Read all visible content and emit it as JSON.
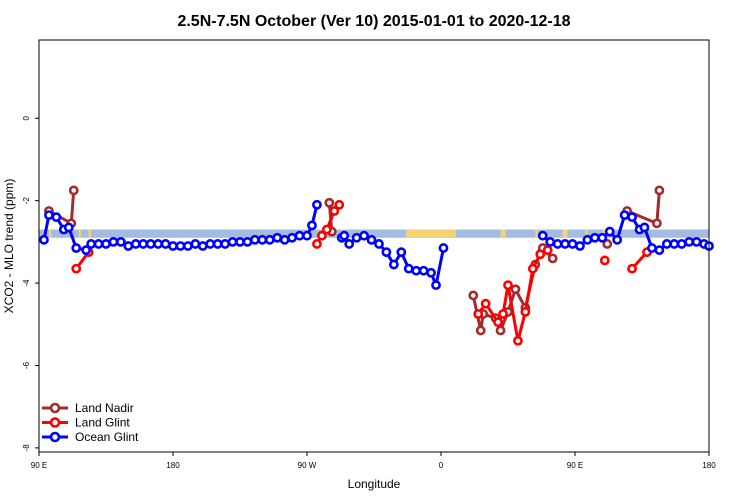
{
  "chart_data": {
    "type": "line",
    "title": "2.5N-7.5N October (Ver 10)   2015-01-01 to 2020-12-18",
    "xlabel": "Longitude",
    "ylabel": "XCO2 - MLO trend (ppm)",
    "xlim": [
      -90,
      180
    ],
    "ylim": [
      -8.1,
      1.9
    ],
    "x_ticks": [
      {
        "value": -90,
        "label": "90 E"
      },
      {
        "value": -36,
        "label": "180"
      },
      {
        "value": 18,
        "label": "90 W"
      },
      {
        "value": 72,
        "label": "0"
      },
      {
        "value": 126,
        "label": "90 E"
      },
      {
        "value": 180,
        "label": "180"
      }
    ],
    "y_ticks": [
      0,
      -2,
      -4,
      -6,
      -8
    ],
    "grid": false,
    "legend_position": "bottom-left",
    "band": {
      "y_range": [
        -2.9,
        -2.7
      ],
      "base_color": "#a3bcdf",
      "highlight_color": "#f5d273",
      "highlight_x_ranges": [
        [
          -86,
          -85
        ],
        [
          -74,
          -73
        ],
        [
          -70,
          -69
        ],
        [
          58,
          78
        ],
        [
          96,
          98
        ],
        [
          110,
          111
        ],
        [
          121,
          123
        ],
        [
          130,
          131
        ],
        [
          137,
          138
        ]
      ]
    },
    "series": [
      {
        "name": "Land Nadir",
        "color": "#a52a2a",
        "segments": [
          [
            [
              -86,
              -2.25
            ],
            [
              -77,
              -2.55
            ],
            [
              -76,
              -1.75
            ]
          ],
          [
            [
              27,
              -2.05
            ],
            [
              28,
              -2.75
            ]
          ],
          [
            [
              85,
              -4.3
            ],
            [
              88,
              -5.15
            ],
            [
              89,
              -4.75
            ],
            [
              94,
              -4.85
            ],
            [
              96,
              -5.15
            ],
            [
              99,
              -4.7
            ],
            [
              102,
              -4.15
            ],
            [
              106,
              -4.6
            ],
            [
              110,
              -3.55
            ],
            [
              113,
              -3.15
            ],
            [
              117,
              -3.4
            ]
          ],
          [
            [
              139,
              -3.05
            ]
          ],
          [
            [
              147,
              -2.25
            ],
            [
              159,
              -2.55
            ],
            [
              160,
              -1.75
            ]
          ]
        ]
      },
      {
        "name": "Land Glint",
        "color": "#ff0000",
        "segments": [
          [
            [
              -75,
              -3.65
            ],
            [
              -70,
              -3.25
            ]
          ],
          [
            [
              22,
              -3.05
            ],
            [
              24,
              -2.85
            ],
            [
              26,
              -2.7
            ],
            [
              29,
              -2.25
            ],
            [
              31,
              -2.1
            ]
          ],
          [
            [
              87,
              -4.75
            ],
            [
              90,
              -4.5
            ],
            [
              95,
              -4.95
            ],
            [
              97,
              -4.75
            ],
            [
              99,
              -4.05
            ],
            [
              103,
              -5.4
            ],
            [
              106,
              -4.7
            ],
            [
              109,
              -3.65
            ],
            [
              112,
              -3.3
            ],
            [
              115,
              -3.2
            ]
          ],
          [
            [
              138,
              -3.45
            ]
          ],
          [
            [
              149,
              -3.65
            ],
            [
              155,
              -3.25
            ]
          ]
        ]
      },
      {
        "name": "Ocean Glint",
        "color": "#0000ff",
        "segments": [
          [
            [
              -88,
              -2.95
            ],
            [
              -86,
              -2.35
            ],
            [
              -83,
              -2.4
            ],
            [
              -80,
              -2.7
            ],
            [
              -78,
              -2.65
            ],
            [
              -75,
              -3.15
            ],
            [
              -71,
              -3.2
            ],
            [
              -69,
              -3.05
            ],
            [
              -66,
              -3.05
            ],
            [
              -63,
              -3.05
            ],
            [
              -60,
              -3
            ],
            [
              -57,
              -3
            ],
            [
              -54,
              -3.1
            ],
            [
              -51,
              -3.05
            ],
            [
              -48,
              -3.05
            ],
            [
              -45,
              -3.05
            ],
            [
              -42,
              -3.05
            ],
            [
              -39,
              -3.05
            ],
            [
              -36,
              -3.1
            ],
            [
              -33,
              -3.1
            ],
            [
              -30,
              -3.1
            ],
            [
              -27,
              -3.05
            ],
            [
              -24,
              -3.1
            ],
            [
              -21,
              -3.05
            ],
            [
              -18,
              -3.05
            ],
            [
              -15,
              -3.05
            ],
            [
              -12,
              -3
            ],
            [
              -9,
              -3
            ],
            [
              -6,
              -3
            ],
            [
              -3,
              -2.95
            ],
            [
              0,
              -2.95
            ],
            [
              3,
              -2.95
            ],
            [
              6,
              -2.9
            ],
            [
              9,
              -2.95
            ],
            [
              12,
              -2.9
            ],
            [
              15,
              -2.85
            ],
            [
              18,
              -2.85
            ],
            [
              20,
              -2.6
            ],
            [
              22,
              -2.1
            ]
          ],
          [
            [
              32,
              -2.9
            ],
            [
              33,
              -2.85
            ],
            [
              35,
              -3.05
            ],
            [
              38,
              -2.9
            ],
            [
              41,
              -2.85
            ],
            [
              44,
              -2.95
            ],
            [
              47,
              -3.05
            ],
            [
              50,
              -3.25
            ],
            [
              53,
              -3.55
            ],
            [
              56,
              -3.25
            ],
            [
              59,
              -3.65
            ],
            [
              62,
              -3.7
            ],
            [
              65,
              -3.7
            ],
            [
              68,
              -3.75
            ],
            [
              70,
              -4.05
            ],
            [
              73,
              -3.15
            ]
          ],
          [
            [
              113,
              -2.85
            ],
            [
              116,
              -3
            ],
            [
              119,
              -3.05
            ],
            [
              122,
              -3.05
            ],
            [
              125,
              -3.05
            ],
            [
              128,
              -3.1
            ],
            [
              131,
              -2.95
            ],
            [
              134,
              -2.9
            ],
            [
              137,
              -2.9
            ],
            [
              140,
              -2.75
            ],
            [
              143,
              -2.95
            ],
            [
              146,
              -2.35
            ],
            [
              149,
              -2.4
            ],
            [
              152,
              -2.7
            ],
            [
              154,
              -2.65
            ],
            [
              157,
              -3.15
            ],
            [
              160,
              -3.2
            ],
            [
              163,
              -3.05
            ],
            [
              166,
              -3.05
            ],
            [
              169,
              -3.05
            ],
            [
              172,
              -3
            ],
            [
              175,
              -3
            ],
            [
              178,
              -3.05
            ],
            [
              180,
              -3.1
            ]
          ]
        ]
      }
    ]
  }
}
